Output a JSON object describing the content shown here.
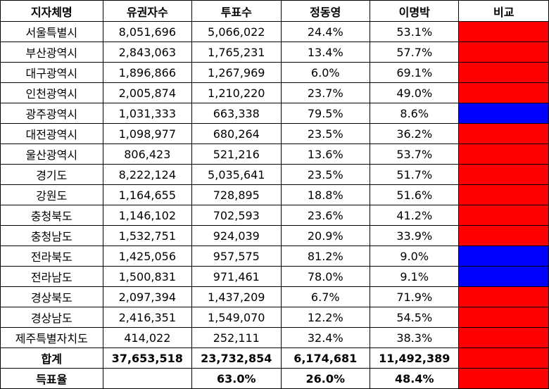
{
  "headers": [
    "지자체명",
    "유권자수",
    "투표수",
    "정동영",
    "이명박",
    "비교"
  ],
  "colors": {
    "red": "#ff0000",
    "blue": "#0000ff"
  },
  "rows": [
    {
      "region": "서울특별시",
      "voters": "8,051,696",
      "votes": "5,066,022",
      "chung": "24.4%",
      "lee": "53.1%",
      "compare": "red"
    },
    {
      "region": "부산광역시",
      "voters": "2,843,063",
      "votes": "1,765,231",
      "chung": "13.4%",
      "lee": "57.7%",
      "compare": "red"
    },
    {
      "region": "대구광역시",
      "voters": "1,896,866",
      "votes": "1,267,969",
      "chung": "6.0%",
      "lee": "69.1%",
      "compare": "red"
    },
    {
      "region": "인천광역시",
      "voters": "2,005,874",
      "votes": "1,210,220",
      "chung": "23.7%",
      "lee": "49.0%",
      "compare": "red"
    },
    {
      "region": "광주광역시",
      "voters": "1,031,333",
      "votes": "663,338",
      "chung": "79.5%",
      "lee": "8.6%",
      "compare": "blue"
    },
    {
      "region": "대전광역시",
      "voters": "1,098,977",
      "votes": "680,264",
      "chung": "23.5%",
      "lee": "36.2%",
      "compare": "red"
    },
    {
      "region": "울산광역시",
      "voters": "806,423",
      "votes": "521,216",
      "chung": "13.6%",
      "lee": "53.7%",
      "compare": "red"
    },
    {
      "region": "경기도",
      "voters": "8,222,124",
      "votes": "5,035,641",
      "chung": "23.5%",
      "lee": "51.7%",
      "compare": "red"
    },
    {
      "region": "강원도",
      "voters": "1,164,655",
      "votes": "728,895",
      "chung": "18.8%",
      "lee": "51.6%",
      "compare": "red"
    },
    {
      "region": "충청북도",
      "voters": "1,146,102",
      "votes": "702,593",
      "chung": "23.6%",
      "lee": "41.2%",
      "compare": "red"
    },
    {
      "region": "충청남도",
      "voters": "1,532,751",
      "votes": "924,039",
      "chung": "20.9%",
      "lee": "33.9%",
      "compare": "red"
    },
    {
      "region": "전라북도",
      "voters": "1,425,056",
      "votes": "957,575",
      "chung": "81.2%",
      "lee": "9.0%",
      "compare": "blue"
    },
    {
      "region": "전라남도",
      "voters": "1,500,831",
      "votes": "971,461",
      "chung": "78.0%",
      "lee": "9.1%",
      "compare": "blue"
    },
    {
      "region": "경상북도",
      "voters": "2,097,394",
      "votes": "1,437,209",
      "chung": "6.7%",
      "lee": "71.9%",
      "compare": "red"
    },
    {
      "region": "경상남도",
      "voters": "2,416,351",
      "votes": "1,549,070",
      "chung": "12.2%",
      "lee": "54.5%",
      "compare": "red"
    },
    {
      "region": "제주특별자치도",
      "voters": "414,022",
      "votes": "252,111",
      "chung": "32.4%",
      "lee": "38.3%",
      "compare": "red"
    }
  ],
  "total": {
    "label": "합계",
    "voters": "37,653,518",
    "votes": "23,732,854",
    "chung": "6,174,681",
    "lee": "11,492,389",
    "compare": "red"
  },
  "rate": {
    "label": "득표율",
    "voters": "",
    "votes": "63.0%",
    "chung": "26.0%",
    "lee": "48.4%",
    "compare": "red"
  }
}
